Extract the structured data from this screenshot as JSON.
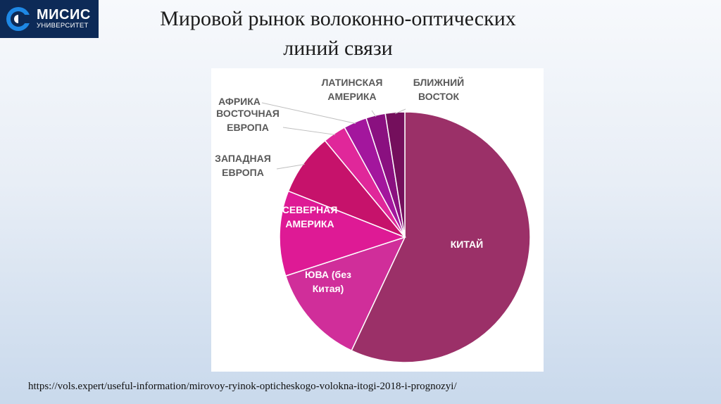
{
  "logo": {
    "name": "МИСИС",
    "subtitle": "УНИВЕРСИТЕТ"
  },
  "title": {
    "line1": "Мировой рынок волоконно-оптических",
    "line2": "линий связи"
  },
  "chart_data": {
    "type": "pie",
    "start_angle_deg": 0,
    "direction": "clockwise",
    "slices": [
      {
        "label": "КИТАЙ",
        "value": 57,
        "color": "#9b3068",
        "label_position": "inside"
      },
      {
        "label": "ЮВА (без Китая)",
        "value": 13,
        "color": "#d02e9a",
        "label_position": "inside"
      },
      {
        "label": "СЕВЕРНАЯ АМЕРИКА",
        "value": 11,
        "color": "#de1a95",
        "label_position": "inside"
      },
      {
        "label": "ЗАПАДНАЯ ЕВРОПА",
        "value": 8,
        "color": "#c6126b",
        "label_position": "outside"
      },
      {
        "label": "ВОСТОЧНАЯ ЕВРОПА",
        "value": 3,
        "color": "#e0279a",
        "label_position": "outside"
      },
      {
        "label": "АФРИКА",
        "value": 3,
        "color": "#a3169d",
        "label_position": "outside"
      },
      {
        "label": "ЛАТИНСКАЯ АМЕРИКА",
        "value": 2.5,
        "color": "#8a1080",
        "label_position": "outside"
      },
      {
        "label": "БЛИЖНИЙ ВОСТОК",
        "value": 2.5,
        "color": "#740f5c",
        "label_position": "outside"
      }
    ]
  },
  "source": {
    "text": "https://vols.expert/useful-information/mirovoy-ryinok-opticheskogo-volokna-itogi-2018-i-prognozyi/"
  }
}
